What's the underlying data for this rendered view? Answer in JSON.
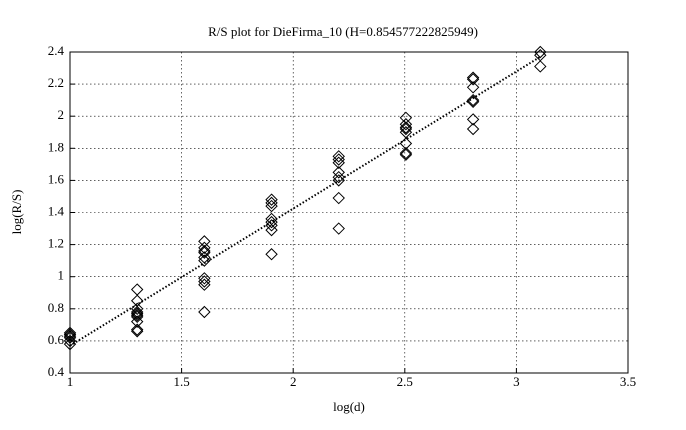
{
  "chart_data": {
    "type": "scatter",
    "title": "R/S plot for DieFirma_10 (H=0.854577222825949)",
    "x_label": "log(d)",
    "y_label": "log(R/S)",
    "xlim": [
      1,
      3.5
    ],
    "xticks": [
      1,
      1.5,
      2,
      2.5,
      3,
      3.5
    ],
    "ylim": [
      0.4,
      2.4
    ],
    "yticks": [
      0.4,
      0.6,
      0.8,
      1,
      1.2,
      1.4,
      1.6,
      1.8,
      2,
      2.2,
      2.4
    ],
    "grid": true,
    "series": [
      {
        "color": "#000000",
        "marker": "diamond",
        "x": [
          1,
          1,
          1,
          1,
          1,
          1,
          1.301,
          1.301,
          1.301,
          1.301,
          1.301,
          1.301,
          1.301,
          1.301,
          1.301,
          1.301,
          1.602,
          1.602,
          1.602,
          1.602,
          1.602,
          1.602,
          1.602,
          1.602,
          1.602,
          1.602,
          1.903,
          1.903,
          1.903,
          1.903,
          1.903,
          1.903,
          1.903,
          1.903,
          2.204,
          2.204,
          2.204,
          2.204,
          2.204,
          2.204,
          2.204,
          2.204,
          2.505,
          2.505,
          2.505,
          2.505,
          2.505,
          2.505,
          2.505,
          2.505,
          2.806,
          2.806,
          2.806,
          2.806,
          2.806,
          2.806,
          2.806,
          3.107,
          3.107,
          3.107
        ],
        "values": [
          0.65,
          0.64,
          0.63,
          0.62,
          0.6,
          0.58,
          0.92,
          0.85,
          0.8,
          0.78,
          0.77,
          0.76,
          0.75,
          0.72,
          0.67,
          0.66,
          1.22,
          1.18,
          1.16,
          1.15,
          1.12,
          1.1,
          0.99,
          0.97,
          0.95,
          0.78,
          1.48,
          1.46,
          1.44,
          1.36,
          1.34,
          1.32,
          1.29,
          1.14,
          1.75,
          1.73,
          1.71,
          1.65,
          1.62,
          1.6,
          1.49,
          1.3,
          1.99,
          1.95,
          1.93,
          1.92,
          1.9,
          1.83,
          1.77,
          1.76,
          2.24,
          2.23,
          2.18,
          2.1,
          2.09,
          1.98,
          1.92,
          2.4,
          2.38,
          2.31
        ]
      },
      {
        "color": "#000000",
        "line": "dotted",
        "x": [
          1,
          3.107
        ],
        "values": [
          0.57,
          2.37
        ]
      }
    ]
  }
}
